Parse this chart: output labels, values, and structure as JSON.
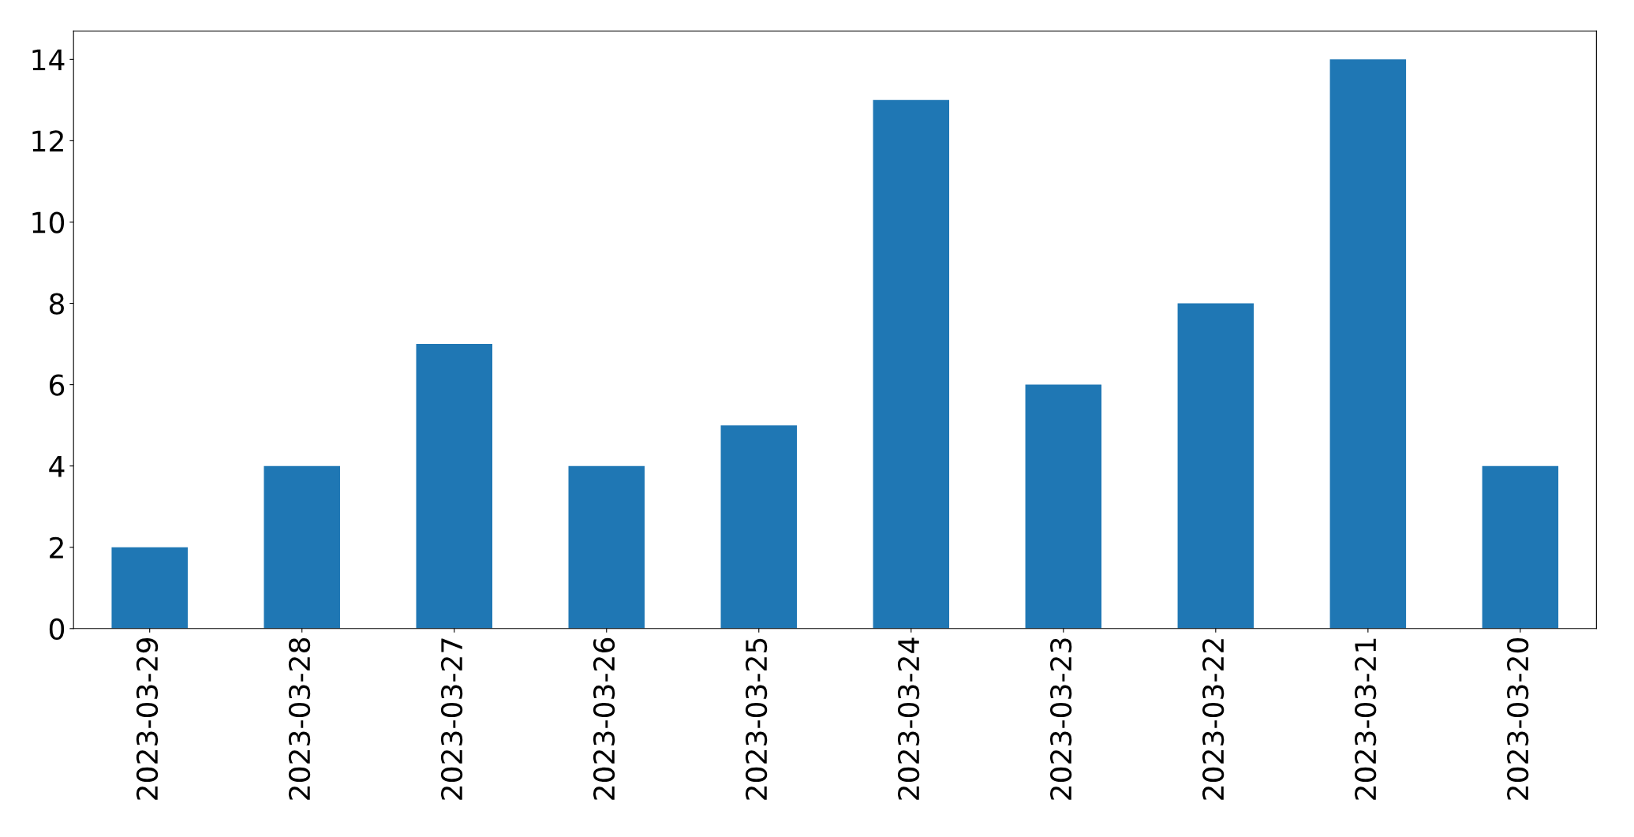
{
  "chart_data": {
    "type": "bar",
    "categories": [
      "2023-03-29",
      "2023-03-28",
      "2023-03-27",
      "2023-03-26",
      "2023-03-25",
      "2023-03-24",
      "2023-03-23",
      "2023-03-22",
      "2023-03-21",
      "2023-03-20"
    ],
    "values": [
      2,
      4,
      7,
      4,
      5,
      13,
      6,
      8,
      14,
      4
    ],
    "color": "#1f77b4",
    "ylim": [
      0,
      14.7
    ],
    "yticks": [
      0,
      2,
      4,
      6,
      8,
      10,
      12,
      14
    ],
    "grid": false,
    "legend": false
  }
}
